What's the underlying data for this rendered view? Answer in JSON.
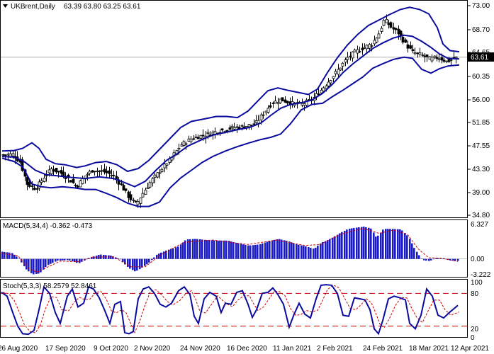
{
  "header": {
    "symbol": "UKBrent,Daily",
    "ohlc": "63.39 63.80 63.25 63.61",
    "dropdown_icon": "triangle-down-icon"
  },
  "price_panel": {
    "last_price_label": "63.61",
    "y_ticks": [
      "73.00",
      "68.70",
      "64.65",
      "60.35",
      "56.00",
      "51.85",
      "47.55",
      "43.30",
      "39.00",
      "34.80"
    ]
  },
  "macd_panel": {
    "header": "MACD(5,34,4) -0.362 -0.473",
    "y_ticks": [
      "6.327",
      "0.00",
      "-3.222"
    ]
  },
  "stoch_panel": {
    "header": "Stoch(5,3,3) 58.2579 52.8461",
    "y_ticks": [
      "100",
      "80",
      "20",
      "0"
    ]
  },
  "x_axis": {
    "labels": [
      "26 Aug 2020",
      "17 Sep 2020",
      "9 Oct 2020",
      "2 Nov 2020",
      "24 Nov 2020",
      "16 Dec 2020",
      "11 Jan 2021",
      "2 Feb 2021",
      "24 Feb 2021",
      "18 Mar 2021",
      "12 Apr 2021"
    ]
  },
  "colors": {
    "bands": "#0a0a9e",
    "histogram": "#1c1cc4",
    "signal": "#cc0000",
    "level_lines": "#cc0000",
    "candle": "#000000",
    "grid_price_line": "#b0b0b0"
  },
  "chart_data": [
    {
      "type": "candlestick",
      "title": "UKBrent,Daily",
      "series": [
        {
          "name": "Close",
          "x": [
            "26 Aug 2020",
            "17 Sep 2020",
            "9 Oct 2020",
            "2 Nov 2020",
            "24 Nov 2020",
            "16 Dec 2020",
            "11 Jan 2021",
            "2 Feb 2021",
            "24 Feb 2021",
            "18 Mar 2021",
            "12 Apr 2021"
          ],
          "values": [
            45.8,
            42.3,
            42.5,
            39.0,
            47.6,
            51.0,
            55.9,
            58.5,
            66.8,
            63.8,
            63.61
          ]
        }
      ],
      "indicators": [
        "Bollinger Bands"
      ],
      "ylim": [
        34.8,
        73.0
      ],
      "last_value": 63.61
    },
    {
      "type": "bar",
      "title": "MACD(5,34,4)",
      "series": [
        {
          "name": "MACD",
          "x": [
            "26 Aug 2020",
            "17 Sep 2020",
            "9 Oct 2020",
            "2 Nov 2020",
            "24 Nov 2020",
            "16 Dec 2020",
            "11 Jan 2021",
            "2 Feb 2021",
            "24 Feb 2021",
            "18 Mar 2021",
            "12 Apr 2021"
          ],
          "values": [
            1.2,
            -2.9,
            0.8,
            -2.0,
            2.2,
            3.6,
            3.5,
            3.3,
            5.7,
            -0.2,
            -0.362
          ]
        },
        {
          "name": "Signal",
          "values": [
            1.0,
            -2.5,
            0.5,
            -1.6,
            1.8,
            3.4,
            3.7,
            3.0,
            5.4,
            0.3,
            -0.473
          ]
        }
      ],
      "ylim": [
        -3.222,
        6.327
      ]
    },
    {
      "type": "line",
      "title": "Stoch(5,3,3)",
      "series": [
        {
          "name": "%K",
          "x": [
            "26 Aug 2020",
            "17 Sep 2020",
            "9 Oct 2020",
            "2 Nov 2020",
            "24 Nov 2020",
            "16 Dec 2020",
            "11 Jan 2021",
            "2 Feb 2021",
            "24 Feb 2021",
            "18 Mar 2021",
            "12 Apr 2021"
          ],
          "values": [
            80,
            72,
            60,
            10,
            95,
            55,
            88,
            75,
            97,
            30,
            58.2579
          ]
        },
        {
          "name": "%D",
          "values": [
            70,
            75,
            65,
            15,
            90,
            60,
            85,
            78,
            92,
            40,
            52.8461
          ]
        }
      ],
      "levels": [
        80,
        20
      ],
      "ylim": [
        0,
        100
      ]
    }
  ]
}
